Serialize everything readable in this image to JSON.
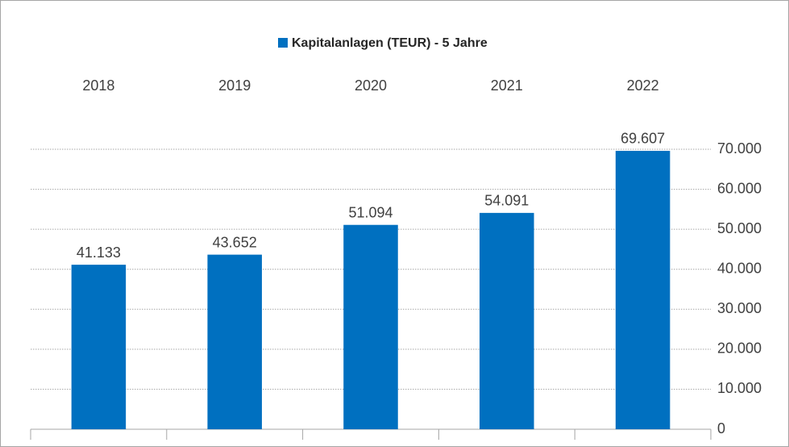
{
  "chart_data": {
    "type": "bar",
    "categories": [
      "2018",
      "2019",
      "2020",
      "2021",
      "2022"
    ],
    "series": [
      {
        "name": "Kapitalanlagen (TEUR) - 5 Jahre",
        "color": "#0070c0",
        "values": [
          41133,
          43652,
          51094,
          54091,
          69607
        ],
        "value_labels": [
          "41.133",
          "43.652",
          "51.094",
          "54.091",
          "69.607"
        ]
      }
    ],
    "ylim": [
      0,
      70000
    ],
    "yticks": [
      0,
      {
        "value": 10000,
        "label": "10.000"
      },
      {
        "value": 20000,
        "label": "20.000"
      },
      {
        "value": 30000,
        "label": "30.000"
      },
      {
        "value": 40000,
        "label": "40.000"
      },
      {
        "value": 50000,
        "label": "50.000"
      },
      {
        "value": 60000,
        "label": "60.000"
      },
      {
        "value": 70000,
        "label": "70.000"
      }
    ],
    "grid": true,
    "legend": "top"
  }
}
